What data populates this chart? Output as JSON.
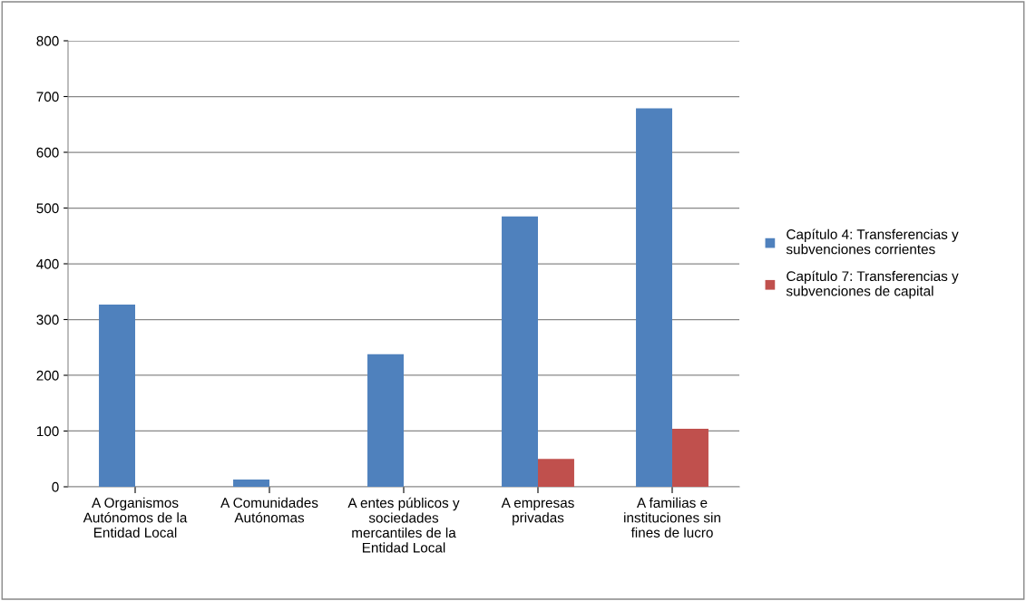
{
  "chart_data": {
    "type": "bar",
    "categories": [
      "A Organismos Autónomos de la Entidad Local",
      "A Comunidades Autónomas",
      "A entes públicos y sociedades mercantiles de la Entidad Local",
      "A empresas privadas",
      "A familias e instituciones sin fines de lucro"
    ],
    "series": [
      {
        "name": "Capítulo 4: Transferencias y subvenciones corrientes",
        "color": "#4f81bd",
        "values": [
          327,
          13,
          238,
          485,
          679
        ]
      },
      {
        "name": "Capítulo 7: Transferencias y subvenciones de capital",
        "color": "#c0504d",
        "values": [
          null,
          null,
          null,
          50,
          104
        ]
      }
    ],
    "ylim": [
      0,
      800
    ],
    "yticks": [
      0,
      100,
      200,
      300,
      400,
      500,
      600,
      700,
      800
    ],
    "grid": "y",
    "legend": "right"
  }
}
